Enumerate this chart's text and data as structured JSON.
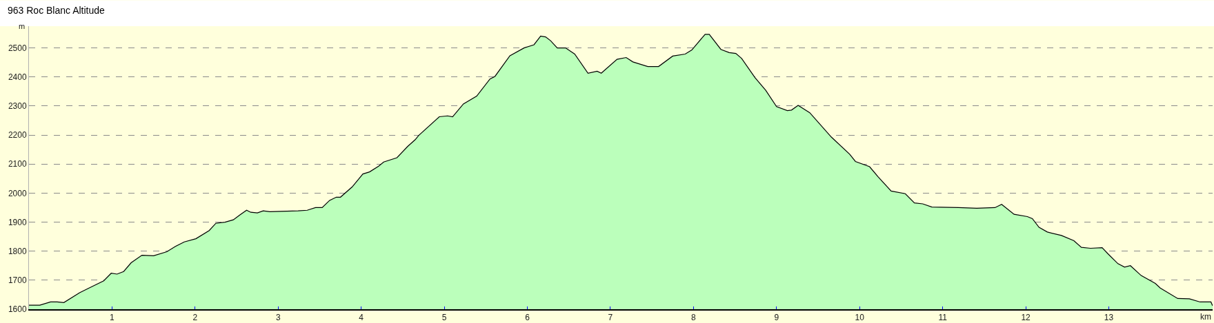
{
  "chart_data": {
    "type": "area",
    "title": "963 Roc Blanc Altitude",
    "xlabel": "km",
    "ylabel": "m",
    "x": [
      0,
      0.13,
      0.26,
      0.34,
      0.42,
      0.61,
      0.71,
      0.9,
      0.99,
      1.06,
      1.14,
      1.23,
      1.36,
      1.5,
      1.66,
      1.76,
      1.87,
      2.01,
      2.17,
      2.25,
      2.36,
      2.46,
      2.54,
      2.62,
      2.67,
      2.75,
      2.82,
      2.9,
      3.24,
      3.35,
      3.45,
      3.53,
      3.62,
      3.7,
      3.75,
      3.89,
      4.02,
      4.1,
      4.21,
      4.27,
      4.43,
      4.56,
      4.65,
      4.69,
      4.94,
      5.04,
      5.1,
      5.23,
      5.39,
      5.55,
      5.61,
      5.79,
      5.96,
      6.08,
      6.16,
      6.22,
      6.28,
      6.36,
      6.46,
      6.57,
      6.73,
      6.84,
      6.89,
      7.08,
      7.19,
      7.27,
      7.45,
      7.58,
      7.75,
      7.9,
      7.98,
      8.14,
      8.19,
      8.33,
      8.43,
      8.51,
      8.58,
      8.74,
      8.87,
      9.0,
      9.13,
      9.18,
      9.26,
      9.4,
      9.66,
      9.88,
      9.95,
      10.12,
      10.22,
      10.38,
      10.55,
      10.66,
      10.76,
      10.87,
      11.19,
      11.41,
      11.63,
      11.71,
      11.86,
      12.02,
      12.08,
      12.16,
      12.26,
      12.43,
      12.58,
      12.67,
      12.78,
      12.92,
      12.99,
      13.11,
      13.19,
      13.26,
      13.39,
      13.56,
      13.62,
      13.83,
      13.97,
      14.1,
      14.23,
      14.25
    ],
    "series": [
      {
        "color": "#bbffbb",
        "values": [
          1614,
          1614,
          1625,
          1625,
          1623,
          1657,
          1671,
          1698,
          1724,
          1721,
          1730,
          1760,
          1786,
          1784,
          1798,
          1816,
          1832,
          1843,
          1871,
          1896,
          1900,
          1908,
          1925,
          1941,
          1934,
          1932,
          1939,
          1936,
          1939,
          1941,
          1950,
          1950,
          1975,
          1986,
          1986,
          2021,
          2066,
          2073,
          2093,
          2107,
          2122,
          2161,
          2184,
          2198,
          2263,
          2266,
          2263,
          2307,
          2334,
          2393,
          2402,
          2473,
          2500,
          2511,
          2541,
          2538,
          2525,
          2500,
          2500,
          2479,
          2413,
          2420,
          2413,
          2461,
          2467,
          2452,
          2436,
          2436,
          2472,
          2479,
          2493,
          2547,
          2547,
          2495,
          2484,
          2481,
          2464,
          2398,
          2354,
          2298,
          2284,
          2286,
          2302,
          2277,
          2193,
          2134,
          2109,
          2091,
          2057,
          2007,
          1998,
          1966,
          1963,
          1952,
          1950,
          1948,
          1950,
          1961,
          1927,
          1919,
          1912,
          1882,
          1866,
          1854,
          1836,
          1813,
          1810,
          1812,
          1791,
          1757,
          1745,
          1750,
          1716,
          1689,
          1673,
          1637,
          1636,
          1625,
          1625,
          1612
        ]
      }
    ],
    "xlim": [
      0,
      14.25
    ],
    "xticks": [
      1,
      2,
      3,
      4,
      5,
      6,
      7,
      8,
      9,
      10,
      11,
      12,
      13
    ],
    "ylim": [
      1600,
      2575
    ],
    "yticks": [
      1600,
      1700,
      1800,
      1900,
      2000,
      2100,
      2200,
      2300,
      2400,
      2500
    ],
    "grid": "y"
  }
}
